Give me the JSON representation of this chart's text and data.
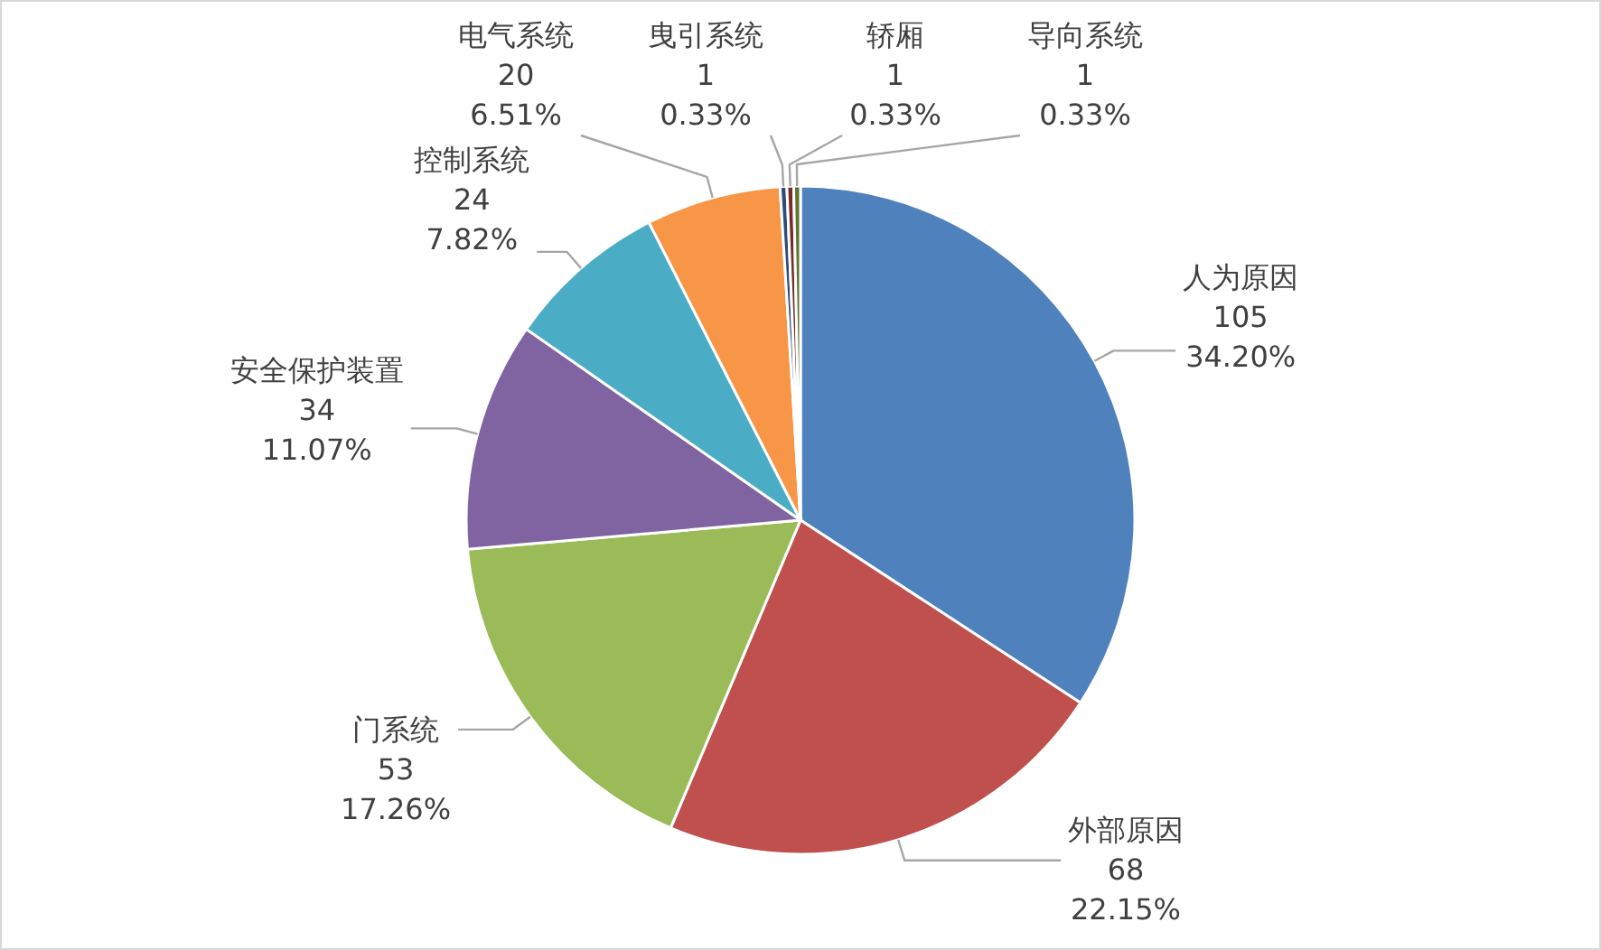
{
  "chart_data": {
    "type": "pie",
    "categories": [
      "人为原因",
      "外部原因",
      "门系统",
      "安全保护装置",
      "控制系统",
      "电气系统",
      "曳引系统",
      "轿厢",
      "导向系统"
    ],
    "values": [
      105,
      68,
      53,
      34,
      24,
      20,
      1,
      1,
      1
    ],
    "value_labels": [
      "105\n34.20%",
      "68\n22.15%",
      "53\n17.26%",
      "34\n11.07%",
      "24\n7.82%",
      "20\n6.51%",
      "1\n0.33%",
      "1\n0.33%",
      "1\n0.33%"
    ],
    "colors": [
      "#4f81bd",
      "#c0504d",
      "#9bbb59",
      "#8064a2",
      "#4bacc6",
      "#f79646",
      "#2c4d75",
      "#772c2a",
      "#5f7530"
    ]
  }
}
